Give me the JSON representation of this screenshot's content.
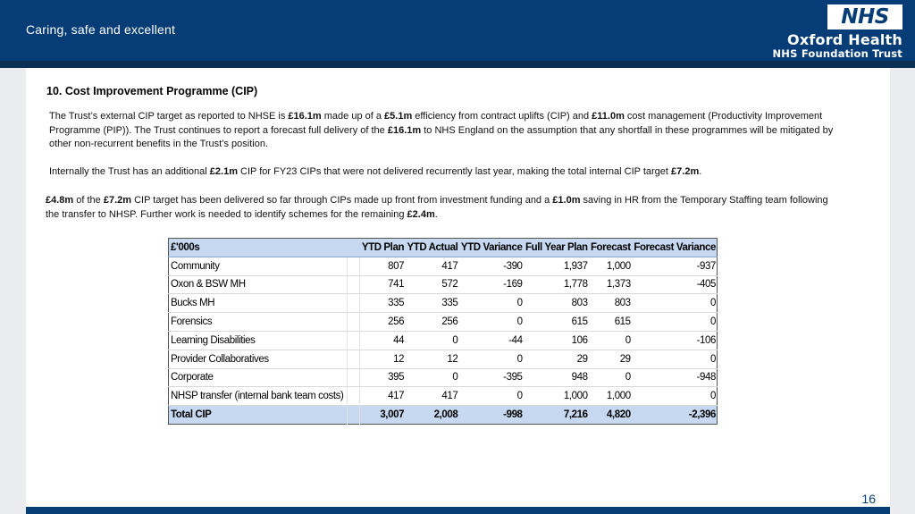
{
  "header": {
    "tagline": "Caring, safe and excellent",
    "logo_text": "NHS",
    "org_name": "Oxford Health",
    "org_sub": "NHS Foundation Trust"
  },
  "section_title": "10. Cost Improvement Programme (CIP)",
  "paragraphs": {
    "p1": [
      {
        "t": "The Trust’s external CIP target as reported to NHSE is "
      },
      {
        "t": "£16.1m",
        "b": true
      },
      {
        "t": " made up of a "
      },
      {
        "t": "£5.1m",
        "b": true
      },
      {
        "t": " efficiency from contract uplifts (CIP) and "
      },
      {
        "t": "£11.0m",
        "b": true
      },
      {
        "t": " cost management (Productivity Improvement Programme (PIP)).  The Trust continues to report  a forecast full delivery of the "
      },
      {
        "t": "£16.1m",
        "b": true
      },
      {
        "t": " to NHS England on the assumption that any shortfall in these programmes will be mitigated by other non-recurrent benefits in the Trust’s position."
      }
    ],
    "p2": [
      {
        "t": "Internally the Trust has an additional "
      },
      {
        "t": "£2.1m",
        "b": true
      },
      {
        "t": " CIP for FY23 CIPs that were not delivered recurrently last year, making the total internal CIP target "
      },
      {
        "t": "£7.2m",
        "b": true
      },
      {
        "t": "."
      }
    ],
    "p3": [
      {
        "t": "£4.8m",
        "b": true
      },
      {
        "t": " of the "
      },
      {
        "t": "£7.2m",
        "b": true
      },
      {
        "t": " CIP target has been delivered so far through CIPs made up front from investment funding and a "
      },
      {
        "t": "£1.0m",
        "b": true
      },
      {
        "t": " saving in HR from the Temporary Staffing  team following the transfer to NHSP. Further work is needed to identify schemes for the remaining "
      },
      {
        "t": "£2.4m",
        "b": true
      },
      {
        "t": "."
      }
    ]
  },
  "table": {
    "headers": [
      "£'000s",
      "",
      "YTD Plan",
      "YTD Actual",
      "YTD Variance",
      "Full Year Plan",
      "Forecast",
      "Forecast Variance"
    ],
    "rows": [
      [
        "Community",
        "",
        "807",
        "417",
        "-390",
        "1,937",
        "1,000",
        "-937"
      ],
      [
        "Oxon & BSW MH",
        "",
        "741",
        "572",
        "-169",
        "1,778",
        "1,373",
        "-405"
      ],
      [
        "Bucks MH",
        "",
        "335",
        "335",
        "0",
        "803",
        "803",
        "0"
      ],
      [
        "Forensics",
        "",
        "256",
        "256",
        "0",
        "615",
        "615",
        "0"
      ],
      [
        "Learning Disabilities",
        "",
        "44",
        "0",
        "-44",
        "106",
        "0",
        "-106"
      ],
      [
        "Provider Collaboratives",
        "",
        "12",
        "12",
        "0",
        "29",
        "29",
        "0"
      ],
      [
        "Corporate",
        "",
        "395",
        "0",
        "-395",
        "948",
        "0",
        "-948"
      ],
      [
        "NHSP transfer (internal bank team costs)",
        "",
        "417",
        "417",
        "0",
        "1,000",
        "1,000",
        "0"
      ]
    ],
    "total": [
      "Total CIP",
      "",
      "3,007",
      "2,008",
      "-998",
      "7,216",
      "4,820",
      "-2,396"
    ]
  },
  "page_number": "16",
  "colors": {
    "header_bg": "#063d76",
    "table_header_bg": "#c6d9f1",
    "content_bg": "#ffffff",
    "page_bg": "#eaecef"
  }
}
